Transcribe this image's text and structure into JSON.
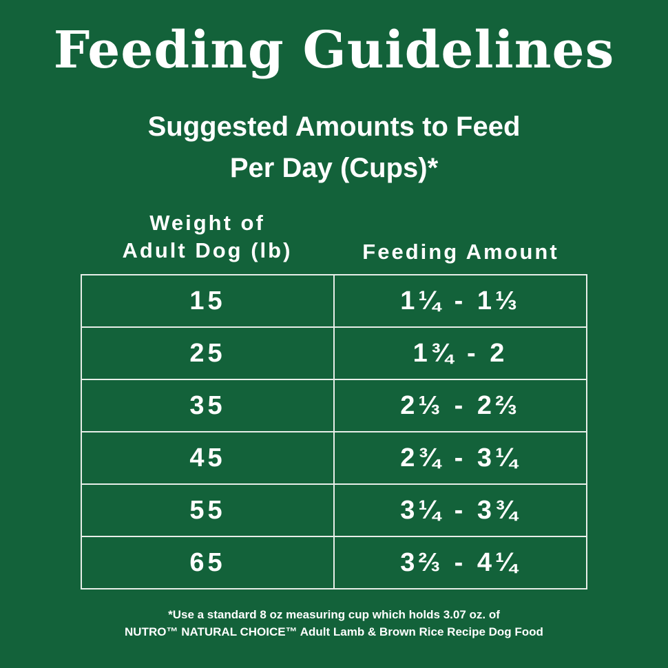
{
  "header": {
    "title": "Feeding Guidelines",
    "subtitle": [
      "Suggested Amounts to Feed",
      "Per Day (Cups)*"
    ]
  },
  "table": {
    "columns": [
      [
        "Weight of",
        "Adult Dog (lb)"
      ],
      [
        "Feeding Amount"
      ]
    ],
    "rows": [
      [
        "15",
        "1¼ - 1⅓"
      ],
      [
        "25",
        "1¾ - 2"
      ],
      [
        "35",
        "2⅓ - 2⅔"
      ],
      [
        "45",
        "2¾ - 3¼"
      ],
      [
        "55",
        "3¼ - 3¾"
      ],
      [
        "65",
        "3⅔ - 4¼"
      ]
    ]
  },
  "footnote": [
    "*Use a standard 8 oz measuring cup which holds 3.07 oz. of",
    "NUTRO™ NATURAL CHOICE™ Adult Lamb & Brown Rice Recipe Dog Food"
  ]
}
